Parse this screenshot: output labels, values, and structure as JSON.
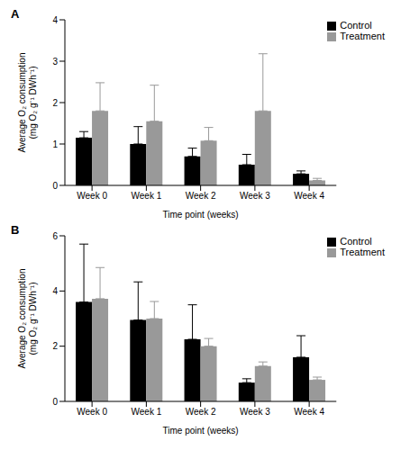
{
  "chart_data": [
    {
      "type": "bar",
      "title": "A",
      "x_label": "Time point (weeks)",
      "y_label": "Average O₂ consumption (mg O₂ g⁻¹ DWh⁻¹)",
      "categories": [
        "Week 0",
        "Week 1",
        "Week 2",
        "Week 3",
        "Week 4"
      ],
      "series": [
        {
          "name": "Control",
          "color": "#000000",
          "values": [
            1.15,
            1.0,
            0.7,
            0.5,
            0.28
          ],
          "errors": [
            0.15,
            0.42,
            0.2,
            0.25,
            0.07
          ]
        },
        {
          "name": "Treatment",
          "color": "#999999",
          "values": [
            1.8,
            1.55,
            1.08,
            1.8,
            0.12
          ],
          "errors": [
            0.68,
            0.87,
            0.32,
            1.38,
            0.05
          ]
        }
      ],
      "ylim": [
        0,
        4
      ],
      "yticks": [
        0,
        1,
        2,
        3,
        4
      ],
      "grid": false,
      "legend": "upper right"
    },
    {
      "type": "bar",
      "title": "B",
      "x_label": "Time point (weeks)",
      "y_label": "Average O₂ consumption (mg O₂ g⁻¹ DWh⁻¹)",
      "categories": [
        "Week 0",
        "Week 1",
        "Week 2",
        "Week 3",
        "Week 4"
      ],
      "series": [
        {
          "name": "Control",
          "color": "#000000",
          "values": [
            3.6,
            2.95,
            2.25,
            0.68,
            1.6
          ],
          "errors": [
            2.1,
            1.38,
            1.25,
            0.14,
            0.78
          ]
        },
        {
          "name": "Treatment",
          "color": "#999999",
          "values": [
            3.72,
            3.0,
            2.0,
            1.28,
            0.78
          ],
          "errors": [
            1.13,
            0.62,
            0.28,
            0.15,
            0.1
          ]
        }
      ],
      "ylim": [
        0,
        6
      ],
      "yticks": [
        0,
        2,
        4,
        6
      ],
      "grid": false,
      "legend": "upper right"
    }
  ]
}
